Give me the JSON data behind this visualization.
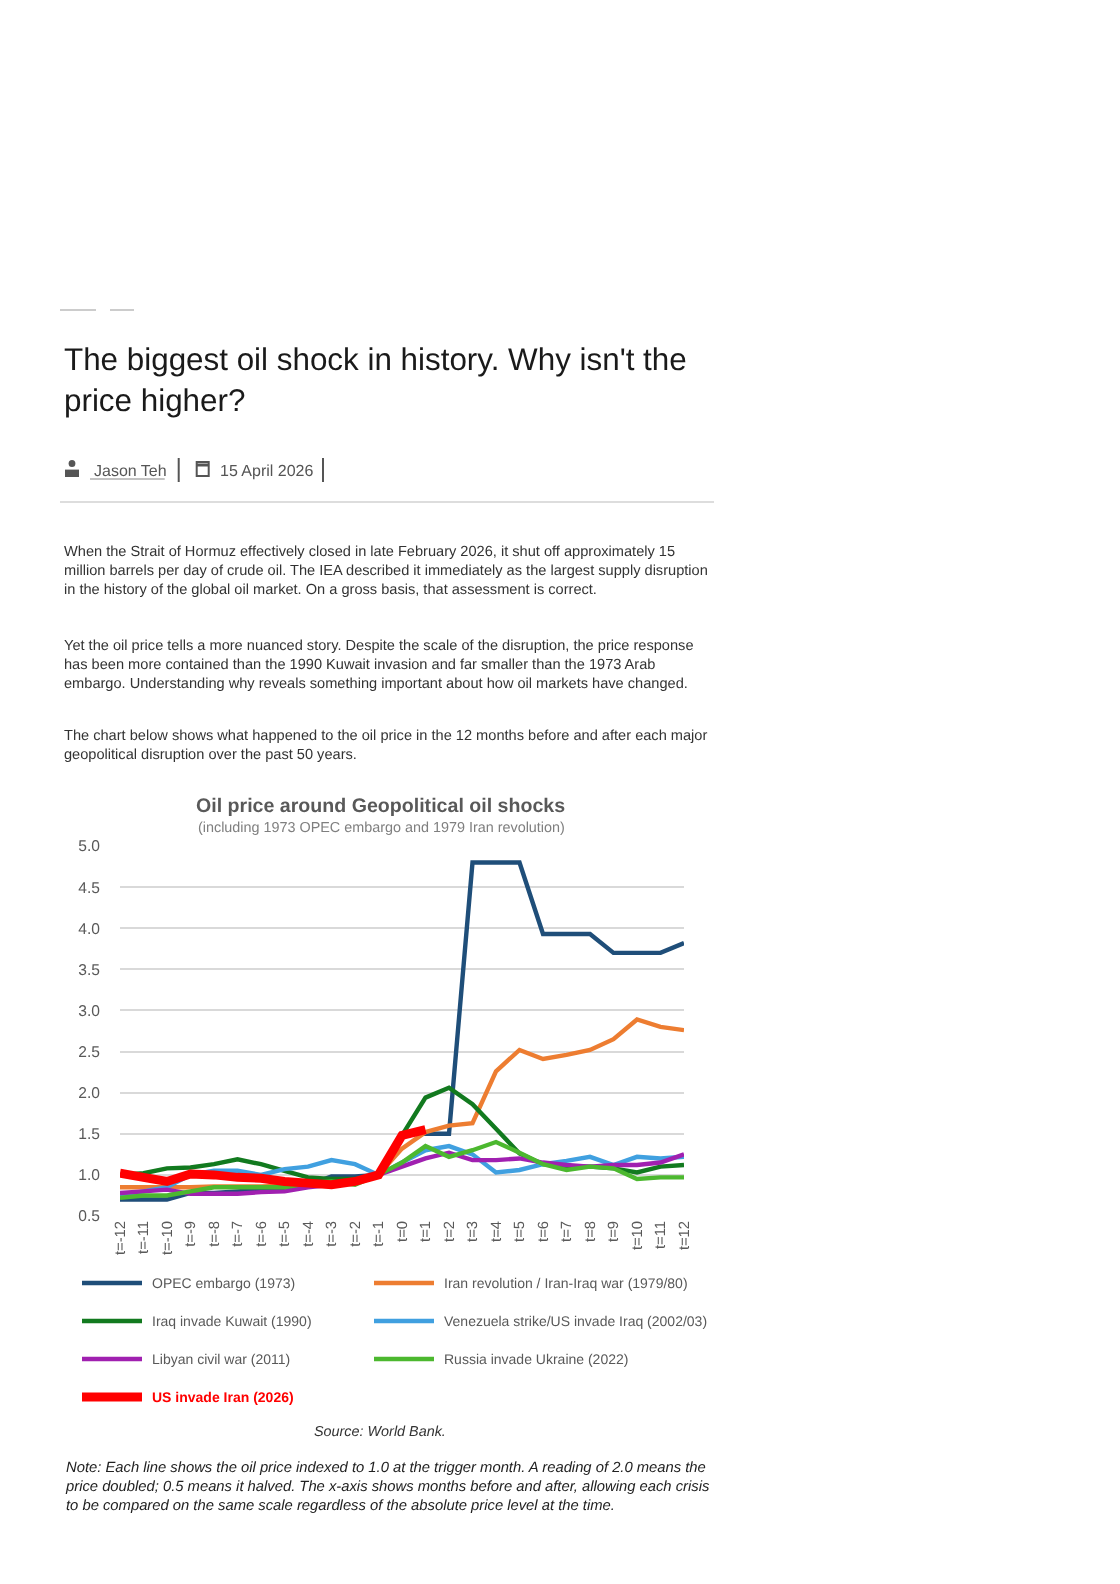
{
  "chart_data": {
    "type": "line",
    "title": "Oil price around Geopolitical oil shocks",
    "subtitle": "(including 1973 OPEC embargo and 1979 Iran revolution)",
    "annotations": [
      "The biggest oil shock in history. Why isn't the price higher?",
      "Jason Teh",
      "15 April 2026",
      "When the Strait of Hormuz effectively closed in late February 2026, it shut off approximately 15 million barrels per day of crude oil. The IEA described it immediately as the largest supply disruption in the history of the global oil market. On a gross basis, that assessment is correct.",
      "Yet the oil price tells a more nuanced story. Despite the scale of the disruption, the price response has been more contained than the 1990 Kuwait invasion and far smaller than the 1973 Arab embargo. Understanding why reveals something important about how oil markets have changed.",
      "The chart below shows what happened to the oil price in the 12 months before and after each major geopolitical disruption over the past 50 years.",
      "Source: World Bank.",
      "Note: Each line shows the oil price indexed to 1.0 at the trigger month. A reading of 2.0 means the price doubled; 0.5 means it halved. The x-axis shows months before and after, allowing each crisis to be compared on the same scale regardless of the absolute price level at the time."
    ],
    "categories": [
      "t=-12",
      "t=-11",
      "t=-10",
      "t=-9",
      "t=-8",
      "t=-7",
      "t=-6",
      "t=-5",
      "t=-4",
      "t=-3",
      "t=-2",
      "t=-1",
      "t=0",
      "t=1",
      "t=2",
      "t=3",
      "t=4",
      "t=5",
      "t=6",
      "t=7",
      "t=8",
      "t=9",
      "t=10",
      "t=11",
      "t=12"
    ],
    "series": [
      {
        "name": "OPEC embargo (1973)",
        "color": "#1f4e79",
        "values": [
          0.7,
          0.7,
          0.7,
          0.78,
          0.78,
          0.8,
          0.82,
          0.84,
          0.88,
          0.98,
          0.98,
          1.0,
          1.5,
          1.5,
          1.5,
          4.8,
          4.8,
          4.8,
          3.93,
          3.93,
          3.93,
          3.7,
          3.7,
          3.7,
          3.82
        ]
      },
      {
        "name": "Iran revolution / Iran-Iraq war (1979/80)",
        "color": "#ed7d31",
        "values": [
          0.85,
          0.85,
          0.85,
          0.85,
          0.86,
          0.86,
          0.86,
          0.87,
          0.88,
          0.9,
          0.92,
          1.0,
          1.32,
          1.52,
          1.6,
          1.63,
          2.26,
          2.52,
          2.41,
          2.46,
          2.52,
          2.65,
          2.89,
          2.8,
          2.76
        ]
      },
      {
        "name": "Iraq invade Kuwait (1990)",
        "color": "#127a1f",
        "values": [
          1.0,
          1.02,
          1.08,
          1.09,
          1.13,
          1.19,
          1.13,
          1.05,
          0.97,
          0.95,
          0.95,
          1.0,
          1.48,
          1.94,
          2.06,
          1.86,
          1.56,
          1.26,
          1.13,
          1.1,
          1.1,
          1.08,
          1.03,
          1.1,
          1.12
        ]
      },
      {
        "name": "Venezuela strike/US invade Iraq (2002/03)",
        "color": "#40a0e0",
        "values": [
          0.75,
          0.8,
          0.85,
          1.0,
          1.05,
          1.05,
          1.0,
          1.07,
          1.1,
          1.18,
          1.13,
          1.0,
          1.15,
          1.3,
          1.35,
          1.25,
          1.03,
          1.06,
          1.13,
          1.17,
          1.22,
          1.12,
          1.22,
          1.2,
          1.22
        ]
      },
      {
        "name": "Libyan civil war (2011)",
        "color": "#a020b0",
        "values": [
          0.78,
          0.8,
          0.82,
          0.77,
          0.77,
          0.77,
          0.79,
          0.8,
          0.85,
          0.88,
          0.93,
          1.0,
          1.1,
          1.2,
          1.27,
          1.18,
          1.18,
          1.2,
          1.15,
          1.12,
          1.1,
          1.12,
          1.12,
          1.15,
          1.25
        ]
      },
      {
        "name": "Russia invade Ukraine (2022)",
        "color": "#4cb82f",
        "values": [
          0.72,
          0.75,
          0.75,
          0.8,
          0.85,
          0.85,
          0.85,
          0.85,
          0.9,
          0.92,
          0.88,
          1.0,
          1.15,
          1.35,
          1.22,
          1.3,
          1.4,
          1.27,
          1.13,
          1.06,
          1.1,
          1.08,
          0.95,
          0.97,
          0.97
        ]
      },
      {
        "name": "US invade Iran (2026)",
        "color": "#ff0000",
        "values": [
          1.02,
          0.97,
          0.92,
          1.01,
          1.0,
          0.97,
          0.96,
          0.92,
          0.9,
          0.88,
          0.92,
          1.0,
          1.48,
          1.55,
          null,
          null,
          null,
          null,
          null,
          null,
          null,
          null,
          null,
          null,
          null
        ]
      }
    ],
    "ylim": [
      0.5,
      5.0
    ],
    "yticks": [
      {
        "value": 0.5,
        "label": "0.5"
      },
      {
        "value": 1.0,
        "label": "1.0"
      },
      {
        "value": 1.5,
        "label": "1.5"
      },
      {
        "value": 2.0,
        "label": "2.0"
      },
      {
        "value": 2.5,
        "label": "2.5"
      },
      {
        "value": 3.0,
        "label": "3.0"
      },
      {
        "value": 3.5,
        "label": "3.5"
      },
      {
        "value": 4.0,
        "label": "4.0"
      },
      {
        "value": 4.5,
        "label": "4.5"
      },
      {
        "value": 5.0,
        "label": "5.0"
      }
    ],
    "grid": "y",
    "legend": "bottom",
    "marker": "none",
    "line_style": "solid"
  }
}
